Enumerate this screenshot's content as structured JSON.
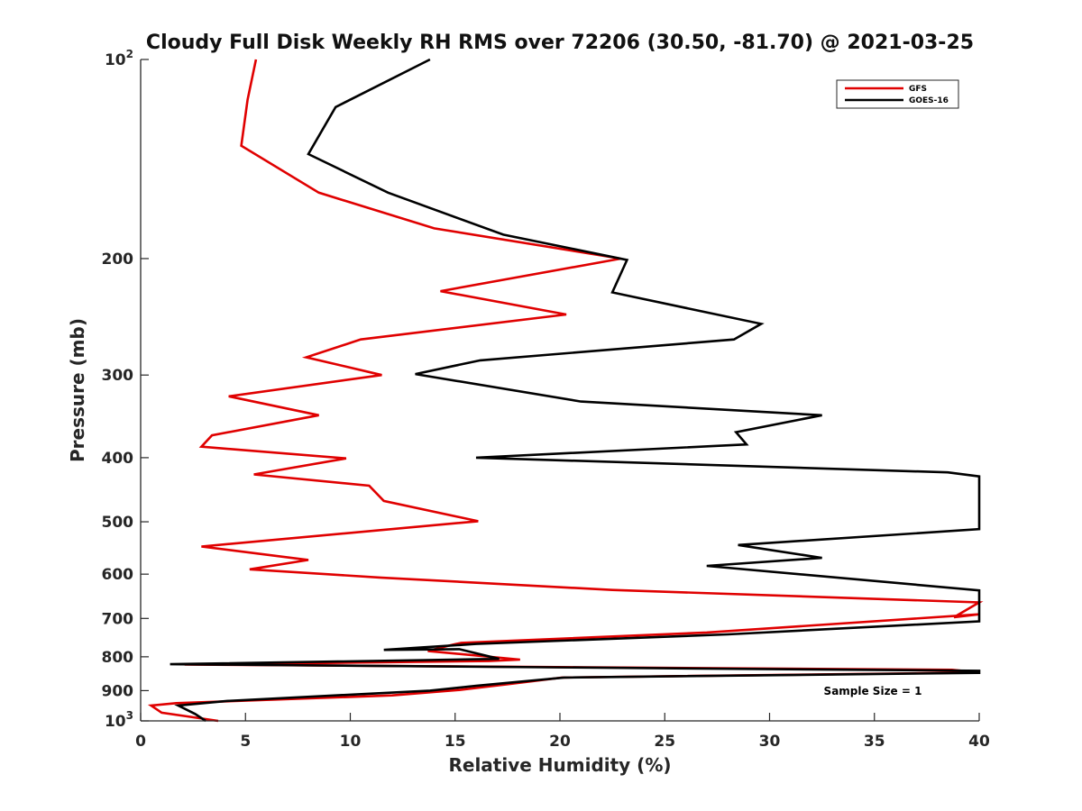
{
  "chart_data": {
    "type": "line",
    "title": "Cloudy Full Disk Weekly RH RMS over 72206 (30.50, -81.70) @ 2021-03-25",
    "xlabel": "Relative Humidity (%)",
    "ylabel": "Pressure (mb)",
    "xlim": [
      0,
      40
    ],
    "ylim": [
      100,
      1000
    ],
    "yscale": "log-reversed",
    "xticks": [
      "0",
      "5",
      "10",
      "15",
      "20",
      "25",
      "30",
      "35",
      "40"
    ],
    "yticks": [
      {
        "value": 100,
        "label": "10",
        "sup": "2"
      },
      {
        "value": 200,
        "label": "200",
        "sup": ""
      },
      {
        "value": 300,
        "label": "300",
        "sup": ""
      },
      {
        "value": 400,
        "label": "400",
        "sup": ""
      },
      {
        "value": 500,
        "label": "500",
        "sup": ""
      },
      {
        "value": 600,
        "label": "600",
        "sup": ""
      },
      {
        "value": 700,
        "label": "700",
        "sup": ""
      },
      {
        "value": 800,
        "label": "800",
        "sup": ""
      },
      {
        "value": 900,
        "label": "900",
        "sup": ""
      },
      {
        "value": 1000,
        "label": "10",
        "sup": "3"
      }
    ],
    "legend_position": "top-right",
    "annotation": "Sample Size = 1",
    "series": [
      {
        "name": "GFS",
        "color": "#e00000",
        "points": [
          [
            5.5,
            100
          ],
          [
            5.1,
            115
          ],
          [
            4.8,
            135
          ],
          [
            8.5,
            159
          ],
          [
            14,
            180
          ],
          [
            22.9,
            200
          ],
          [
            14.3,
            224
          ],
          [
            20.3,
            243
          ],
          [
            10.5,
            265
          ],
          [
            7.9,
            282
          ],
          [
            11.5,
            300
          ],
          [
            4.2,
            323
          ],
          [
            8.5,
            345
          ],
          [
            3.4,
            370
          ],
          [
            2.9,
            385
          ],
          [
            9.8,
            401
          ],
          [
            5.4,
            424
          ],
          [
            10.9,
            441
          ],
          [
            11.6,
            465
          ],
          [
            16.1,
            499
          ],
          [
            2.9,
            545
          ],
          [
            8,
            571
          ],
          [
            5.2,
            590
          ],
          [
            11.4,
            607
          ],
          [
            22.5,
            634
          ],
          [
            40,
            662
          ],
          [
            38.8,
            697
          ],
          [
            40,
            690
          ],
          [
            27,
            735
          ],
          [
            15.3,
            762
          ],
          [
            14.9,
            767
          ],
          [
            13.7,
            784
          ],
          [
            18.1,
            808
          ],
          [
            16.6,
            812
          ],
          [
            2.1,
            822
          ],
          [
            38.7,
            837
          ],
          [
            40,
            845
          ],
          [
            20.1,
            860
          ],
          [
            17.5,
            880
          ],
          [
            15.2,
            898
          ],
          [
            12,
            915
          ],
          [
            1.7,
            940
          ],
          [
            0.5,
            948
          ],
          [
            1,
            972
          ],
          [
            3.7,
            1000
          ]
        ]
      },
      {
        "name": "GOES-16",
        "color": "#000000",
        "points": [
          [
            13.8,
            100
          ],
          [
            9.3,
            118
          ],
          [
            8,
            139
          ],
          [
            11.8,
            159
          ],
          [
            17.3,
            184
          ],
          [
            23.2,
            201
          ],
          [
            22.5,
            225
          ],
          [
            29.6,
            251
          ],
          [
            28.3,
            265
          ],
          [
            16.2,
            285
          ],
          [
            13.1,
            299
          ],
          [
            21,
            329
          ],
          [
            32.5,
            345
          ],
          [
            28.4,
            366
          ],
          [
            28.9,
            382
          ],
          [
            16,
            400
          ],
          [
            38.5,
            421
          ],
          [
            40,
            427
          ],
          [
            40,
            513
          ],
          [
            28.5,
            542
          ],
          [
            32.5,
            567
          ],
          [
            27,
            583
          ],
          [
            40,
            635
          ],
          [
            40,
            707
          ],
          [
            28,
            740
          ],
          [
            16,
            765
          ],
          [
            11.6,
            781
          ],
          [
            15.2,
            779
          ],
          [
            17.1,
            806
          ],
          [
            1.4,
            821
          ],
          [
            40,
            840
          ],
          [
            40,
            846
          ],
          [
            20.2,
            860
          ],
          [
            16,
            885
          ],
          [
            13.8,
            900
          ],
          [
            4.1,
            933
          ],
          [
            1.8,
            948
          ],
          [
            2.6,
            976
          ],
          [
            3.1,
            1000
          ]
        ]
      }
    ]
  }
}
